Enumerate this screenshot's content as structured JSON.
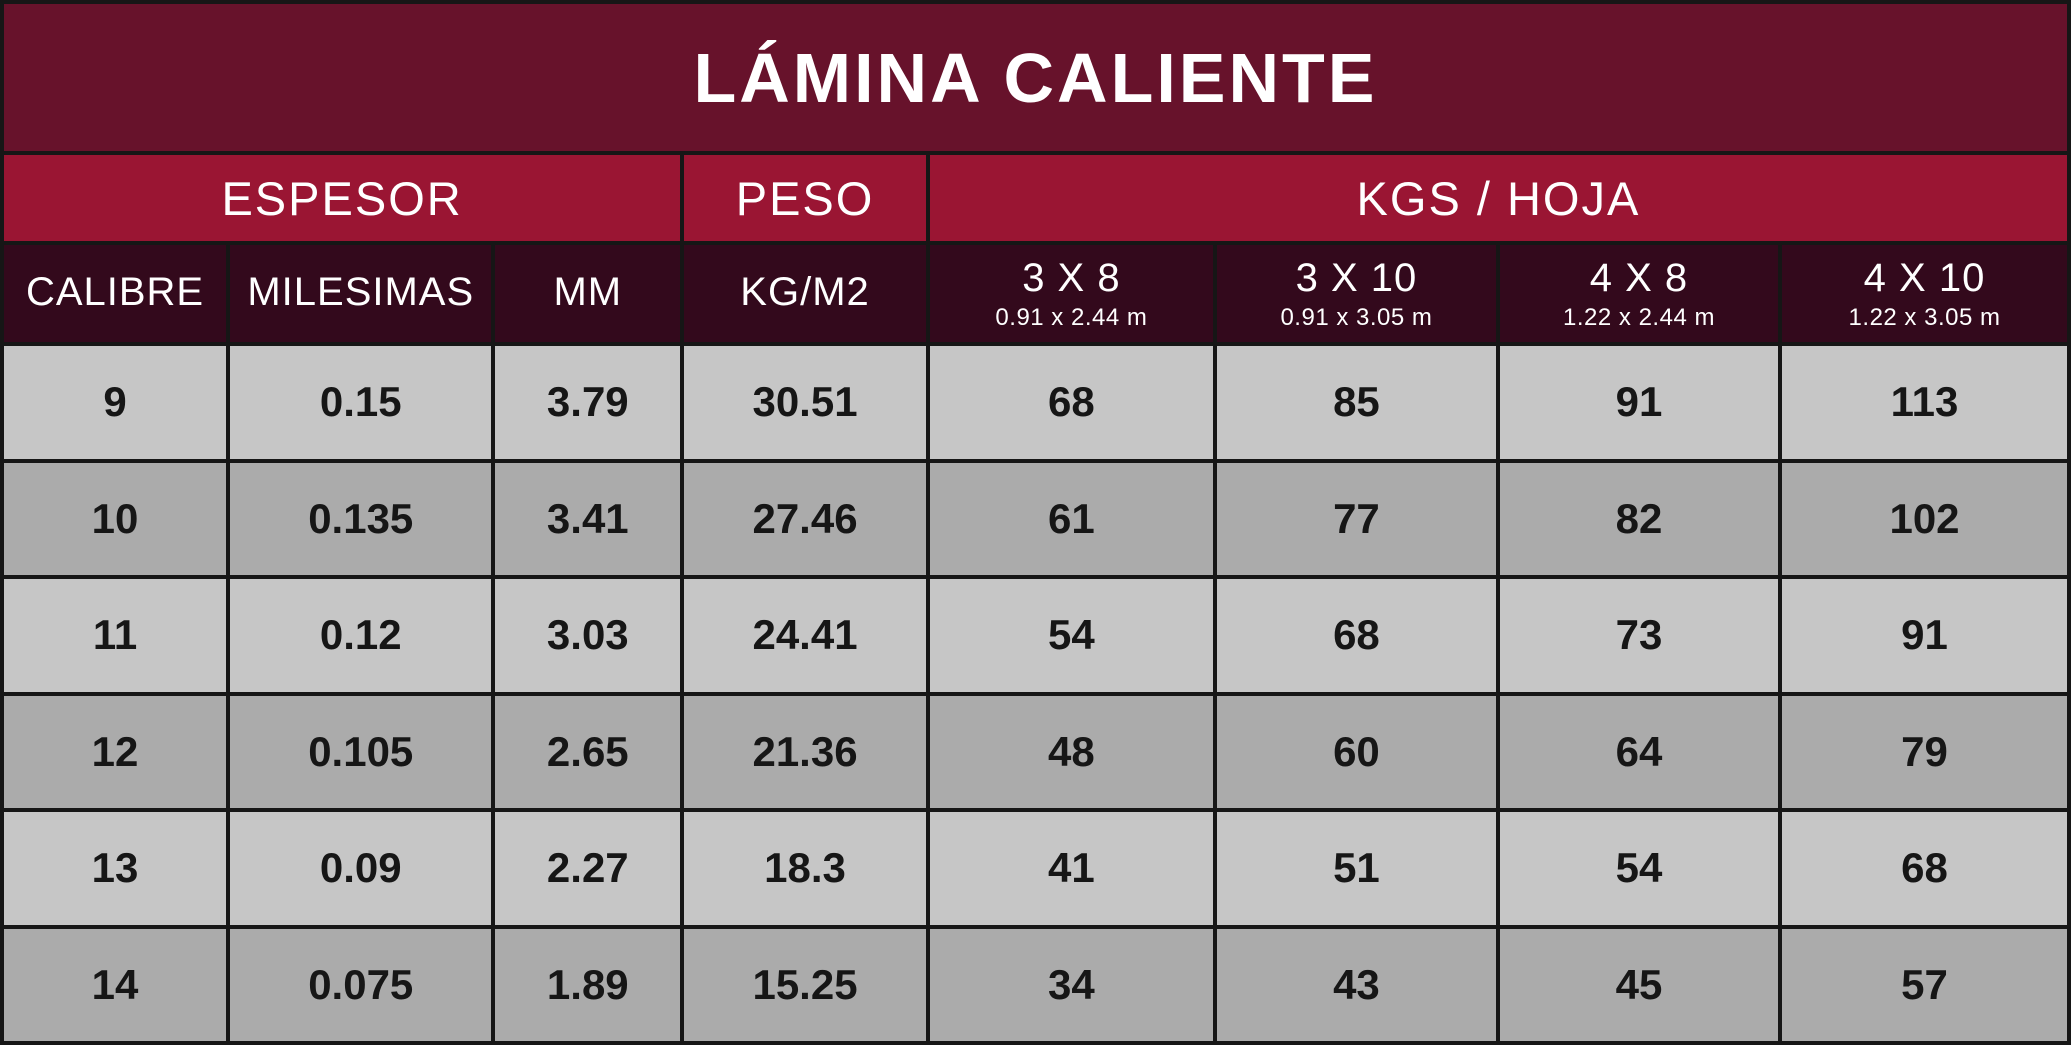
{
  "chart_data": {
    "type": "table",
    "title": "LÁMINA CALIENTE",
    "column_groups": [
      {
        "label": "ESPESOR",
        "span": 3
      },
      {
        "label": "PESO",
        "span": 1
      },
      {
        "label": "KGS / HOJA",
        "span": 4
      }
    ],
    "columns": [
      {
        "label": "CALIBRE",
        "sublabel": ""
      },
      {
        "label": "MILESIMAS",
        "sublabel": ""
      },
      {
        "label": "MM",
        "sublabel": ""
      },
      {
        "label": "KG/M2",
        "sublabel": ""
      },
      {
        "label": "3 X 8",
        "sublabel": "0.91 x 2.44 m"
      },
      {
        "label": "3 X 10",
        "sublabel": "0.91 x 3.05 m"
      },
      {
        "label": "4 X 8",
        "sublabel": "1.22 x 2.44 m"
      },
      {
        "label": "4 X 10",
        "sublabel": "1.22 x 3.05 m"
      }
    ],
    "rows": [
      [
        9,
        0.15,
        3.79,
        30.51,
        68,
        85,
        91,
        113
      ],
      [
        10,
        0.135,
        3.41,
        27.46,
        61,
        77,
        82,
        102
      ],
      [
        11,
        0.12,
        3.03,
        24.41,
        54,
        68,
        73,
        91
      ],
      [
        12,
        0.105,
        2.65,
        21.36,
        48,
        60,
        64,
        79
      ],
      [
        13,
        0.09,
        2.27,
        18.3,
        41,
        51,
        54,
        68
      ],
      [
        14,
        0.075,
        1.89,
        15.25,
        34,
        43,
        45,
        57
      ]
    ]
  },
  "colors": {
    "title_bg": "#67122B",
    "group_header_bg": "#9A1533",
    "column_header_bg": "#33091C",
    "row_light_bg": "#C6C6C6",
    "row_dark_bg": "#ABABAB",
    "grid_border": "#161616",
    "header_text": "#FFFFFF",
    "data_text": "#161616"
  }
}
